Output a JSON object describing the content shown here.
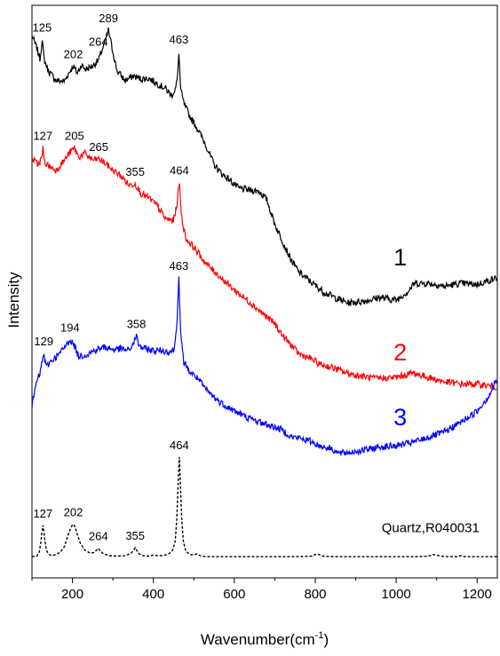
{
  "chart_data": {
    "type": "line",
    "xlabel": "Wavenumber(cm",
    "xlabel_sup": "-1",
    "xlabel_close": ")",
    "ylabel": "Intensity",
    "xlim": [
      100,
      1250
    ],
    "ylim": [
      0,
      1
    ],
    "grid": false,
    "x_ticks": [
      200,
      400,
      600,
      800,
      1000,
      1200
    ],
    "series": [
      {
        "name": "1",
        "color": "#000000",
        "dash": false,
        "x": [
          100,
          112,
          120,
          125,
          130,
          140,
          160,
          180,
          195,
          202,
          212,
          222,
          232,
          250,
          264,
          280,
          289,
          298,
          310,
          330,
          350,
          370,
          390,
          410,
          430,
          445,
          455,
          460,
          463,
          467,
          475,
          490,
          510,
          530,
          550,
          570,
          590,
          610,
          640,
          660,
          680,
          700,
          720,
          740,
          760,
          790,
          820,
          850,
          880,
          920,
          960,
          1000,
          1030,
          1045,
          1080,
          1120,
          1160,
          1200,
          1250
        ],
        "y": [
          0.952,
          0.93,
          0.91,
          0.945,
          0.91,
          0.89,
          0.872,
          0.871,
          0.89,
          0.898,
          0.885,
          0.9,
          0.892,
          0.898,
          0.908,
          0.94,
          0.962,
          0.93,
          0.89,
          0.872,
          0.88,
          0.875,
          0.876,
          0.866,
          0.858,
          0.845,
          0.858,
          0.88,
          0.924,
          0.858,
          0.832,
          0.808,
          0.785,
          0.756,
          0.722,
          0.705,
          0.694,
          0.68,
          0.676,
          0.675,
          0.66,
          0.616,
          0.584,
          0.552,
          0.53,
          0.512,
          0.495,
          0.484,
          0.475,
          0.478,
          0.485,
          0.48,
          0.496,
          0.51,
          0.51,
          0.505,
          0.51,
          0.508,
          0.52
        ]
      },
      {
        "name": "2",
        "color": "#ff0000",
        "dash": false,
        "x": [
          100,
          115,
          125,
          127,
          130,
          140,
          160,
          180,
          195,
          205,
          215,
          230,
          250,
          265,
          280,
          300,
          320,
          340,
          355,
          370,
          390,
          410,
          430,
          450,
          458,
          464,
          470,
          480,
          500,
          530,
          560,
          600,
          640,
          680,
          700,
          720,
          740,
          760,
          790,
          810,
          840,
          870,
          900,
          950,
          1000,
          1040,
          1080,
          1120,
          1160,
          1200,
          1250
        ],
        "y": [
          0.733,
          0.722,
          0.735,
          0.752,
          0.728,
          0.72,
          0.712,
          0.73,
          0.745,
          0.752,
          0.735,
          0.742,
          0.73,
          0.732,
          0.725,
          0.712,
          0.702,
          0.685,
          0.688,
          0.67,
          0.662,
          0.648,
          0.625,
          0.622,
          0.65,
          0.69,
          0.628,
          0.59,
          0.575,
          0.545,
          0.525,
          0.498,
          0.475,
          0.45,
          0.438,
          0.416,
          0.4,
          0.384,
          0.375,
          0.366,
          0.36,
          0.352,
          0.346,
          0.34,
          0.342,
          0.35,
          0.342,
          0.334,
          0.33,
          0.33,
          0.325
        ]
      },
      {
        "name": "3",
        "color": "#0000ff",
        "dash": false,
        "x": [
          100,
          110,
          120,
          129,
          135,
          145,
          165,
          180,
          194,
          205,
          215,
          235,
          260,
          280,
          300,
          320,
          340,
          352,
          358,
          365,
          380,
          400,
          420,
          440,
          452,
          458,
          463,
          467,
          475,
          490,
          510,
          530,
          560,
          600,
          640,
          680,
          720,
          740,
          760,
          790,
          810,
          840,
          860,
          880,
          920,
          960,
          1000,
          1040,
          1080,
          1120,
          1160,
          1200,
          1230,
          1250
        ],
        "y": [
          0.29,
          0.33,
          0.35,
          0.385,
          0.36,
          0.37,
          0.382,
          0.395,
          0.41,
          0.398,
          0.38,
          0.383,
          0.392,
          0.396,
          0.392,
          0.393,
          0.39,
          0.405,
          0.416,
          0.398,
          0.393,
          0.39,
          0.39,
          0.388,
          0.392,
          0.44,
          0.52,
          0.42,
          0.37,
          0.352,
          0.34,
          0.32,
          0.3,
          0.282,
          0.268,
          0.258,
          0.248,
          0.236,
          0.234,
          0.228,
          0.22,
          0.215,
          0.206,
          0.208,
          0.212,
          0.218,
          0.22,
          0.226,
          0.235,
          0.245,
          0.262,
          0.282,
          0.31,
          0.34
        ]
      },
      {
        "name": "Quartz,R040031",
        "color": "#000000",
        "dash": true,
        "x": [
          100,
          112,
          118,
          122,
          125,
          127,
          129,
          132,
          136,
          142,
          150,
          160,
          170,
          180,
          188,
          195,
          200,
          202,
          206,
          212,
          220,
          232,
          245,
          255,
          260,
          264,
          268,
          275,
          290,
          310,
          330,
          345,
          352,
          355,
          358,
          365,
          375,
          390,
          400,
          410,
          420,
          430,
          440,
          448,
          454,
          458,
          461,
          464,
          467,
          470,
          474,
          480,
          490,
          500,
          508,
          515,
          530,
          560,
          600,
          650,
          700,
          750,
          790,
          805,
          820,
          850,
          900,
          950,
          1000,
          1050,
          1080,
          1090,
          1120,
          1150,
          1160,
          1170,
          1200,
          1250
        ],
        "y": [
          0.022,
          0.023,
          0.03,
          0.048,
          0.068,
          0.078,
          0.07,
          0.05,
          0.033,
          0.026,
          0.024,
          0.026,
          0.03,
          0.04,
          0.058,
          0.072,
          0.079,
          0.08,
          0.076,
          0.062,
          0.045,
          0.033,
          0.028,
          0.03,
          0.034,
          0.037,
          0.033,
          0.028,
          0.024,
          0.023,
          0.024,
          0.028,
          0.034,
          0.038,
          0.034,
          0.027,
          0.024,
          0.023,
          0.025,
          0.024,
          0.024,
          0.025,
          0.028,
          0.034,
          0.05,
          0.09,
          0.15,
          0.2,
          0.15,
          0.09,
          0.05,
          0.032,
          0.026,
          0.025,
          0.027,
          0.024,
          0.022,
          0.022,
          0.022,
          0.022,
          0.022,
          0.022,
          0.023,
          0.027,
          0.023,
          0.022,
          0.022,
          0.022,
          0.022,
          0.022,
          0.023,
          0.026,
          0.022,
          0.022,
          0.024,
          0.022,
          0.022,
          0.022
        ]
      }
    ],
    "annotations": [
      {
        "text": "125",
        "series": 0,
        "x": 125
      },
      {
        "text": "202",
        "series": 0,
        "x": 202
      },
      {
        "text": "264",
        "series": 0,
        "x": 264
      },
      {
        "text": "289",
        "series": 0,
        "x": 289
      },
      {
        "text": "463",
        "series": 0,
        "x": 463
      },
      {
        "text": "127",
        "series": 1,
        "x": 127
      },
      {
        "text": "205",
        "series": 1,
        "x": 205
      },
      {
        "text": "265",
        "series": 1,
        "x": 265
      },
      {
        "text": "355",
        "series": 1,
        "x": 355
      },
      {
        "text": "464",
        "series": 1,
        "x": 464
      },
      {
        "text": "129",
        "series": 2,
        "x": 129
      },
      {
        "text": "194",
        "series": 2,
        "x": 194
      },
      {
        "text": "358",
        "series": 2,
        "x": 358
      },
      {
        "text": "463",
        "series": 2,
        "x": 463
      },
      {
        "text": "127",
        "series": 3,
        "x": 127
      },
      {
        "text": "202",
        "series": 3,
        "x": 202
      },
      {
        "text": "264",
        "series": 3,
        "x": 264
      },
      {
        "text": "355",
        "series": 3,
        "x": 355
      },
      {
        "text": "464",
        "series": 3,
        "x": 464
      }
    ]
  }
}
